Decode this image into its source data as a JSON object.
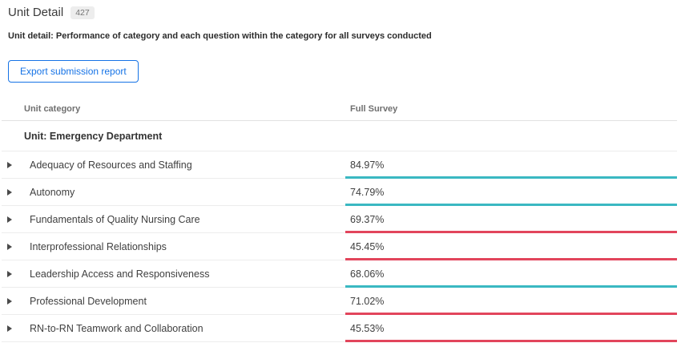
{
  "page": {
    "title": "Unit Detail",
    "badge": "427",
    "subtitle": "Unit detail: Performance of category and each question within the category for all surveys conducted",
    "export_button_label": "Export submission report"
  },
  "table": {
    "columns": [
      "Unit category",
      "Full Survey"
    ],
    "group_header": "Unit: Emergency Department",
    "rows": [
      {
        "label": "Adequacy of Resources and Staffing",
        "value": "84.97%",
        "status": "positive"
      },
      {
        "label": "Autonomy",
        "value": "74.79%",
        "status": "positive"
      },
      {
        "label": "Fundamentals of Quality Nursing Care",
        "value": "69.37%",
        "status": "negative"
      },
      {
        "label": "Interprofessional Relationships",
        "value": "45.45%",
        "status": "negative"
      },
      {
        "label": "Leadership Access and Responsiveness",
        "value": "68.06%",
        "status": "positive"
      },
      {
        "label": "Professional Development",
        "value": "71.02%",
        "status": "negative"
      },
      {
        "label": "RN-to-RN Teamwork and Collaboration",
        "value": "45.53%",
        "status": "negative"
      }
    ]
  },
  "colors": {
    "positive": "#3ab8c2",
    "negative": "#e2455c",
    "accent_blue": "#1673e6"
  }
}
